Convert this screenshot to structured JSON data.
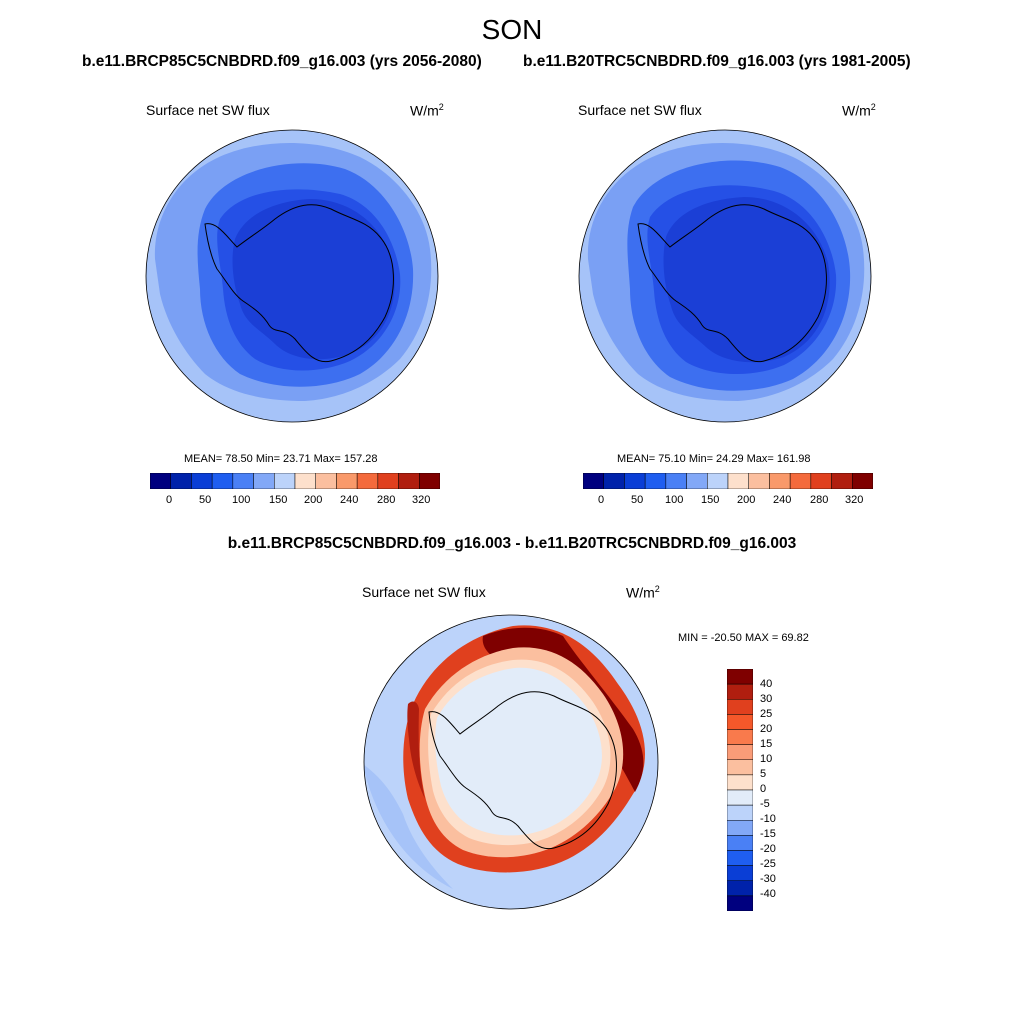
{
  "season": "SON",
  "panels": [
    {
      "case_title": "b.e11.BRCP85C5CNBDRD.f09_g16.003 (yrs 2056-2080)",
      "variable": "Surface net SW flux",
      "units_base": "W/m",
      "units_exp": "2",
      "stats": "MEAN=  78.50  Min=  23.71  Max= 157.28"
    },
    {
      "case_title": "b.e11.B20TRC5CNBDRD.f09_g16.003 (yrs 1981-2005)",
      "variable": "Surface net SW flux",
      "units_base": "W/m",
      "units_exp": "2",
      "stats": "MEAN=  75.10  Min=  24.29  Max= 161.98"
    }
  ],
  "diff_panel": {
    "title": "b.e11.BRCP85C5CNBDRD.f09_g16.003 - b.e11.B20TRC5CNBDRD.f09_g16.003",
    "variable": "Surface net SW flux",
    "units_base": "W/m",
    "units_exp": "2",
    "stats": "MIN = -20.50 MAX =  69.82"
  },
  "colorbars": {
    "absolute": {
      "colors": [
        "#00007f",
        "#0022aa",
        "#0a3ed6",
        "#1f5ef0",
        "#4a80f5",
        "#82a8f7",
        "#bcd3fa",
        "#fde0cc",
        "#fbbf9f",
        "#f9996a",
        "#f46a3c",
        "#e0401e",
        "#b01e0f",
        "#7f0000"
      ],
      "labels": [
        "0",
        "50",
        "100",
        "150",
        "200",
        "240",
        "280",
        "320"
      ]
    },
    "difference": {
      "colors": [
        "#7f0000",
        "#b01e0f",
        "#e0401e",
        "#f4582a",
        "#f97a4c",
        "#fa9c78",
        "#fbbf9f",
        "#fde0cc",
        "#e2ecf9",
        "#bcd3fa",
        "#82a8f7",
        "#4a80f5",
        "#1f5ef0",
        "#0a3ed6",
        "#0022aa",
        "#00007f"
      ],
      "labels": [
        "40",
        "30",
        "25",
        "20",
        "15",
        "10",
        "5",
        "0",
        "-5",
        "-10",
        "-15",
        "-20",
        "-25",
        "-30",
        "-40"
      ]
    }
  }
}
